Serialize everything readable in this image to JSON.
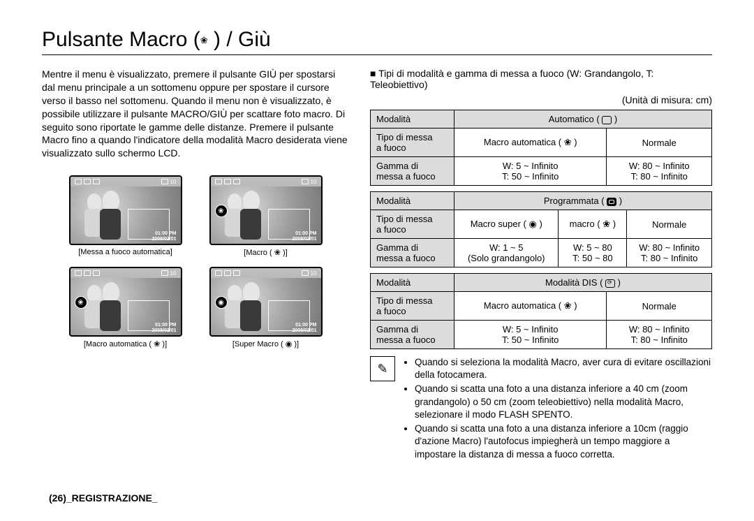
{
  "title_prefix": "Pulsante Macro (",
  "title_suffix": " ) / Giù",
  "intro": "Mentre il menu è visualizzato, premere il pulsante GIÙ per spostarsi dal menu principale a un sottomenu oppure per spostare il cursore verso il basso nel sottomenu. Quando il menu non è visualizzato, è possibile utilizzare il pulsante MACRO/GIÙ per scattare foto macro. Di seguito sono riportate le gamme delle distanze. Premere il pulsante Macro fino a quando l'indicatore della modalità Macro desiderata viene visualizzato sullo schermo LCD.",
  "thumbs": [
    {
      "caption_pre": "[Messa a fuoco automatica]",
      "time": "01:00 PM",
      "date": "2008/02/01",
      "res": "10",
      "has_badge": false
    },
    {
      "caption_pre": "[Macro ( ",
      "caption_post": " )]",
      "time": "01:00 PM",
      "date": "2008/02/01",
      "res": "10",
      "has_badge": true,
      "badge": "❀"
    },
    {
      "caption_pre": "[Macro automatica ( ",
      "caption_post": " )]",
      "time": "01:00 PM",
      "date": "2008/02/01",
      "res": "10",
      "has_badge": true,
      "badge": "❀"
    },
    {
      "caption_pre": "[Super Macro ( ",
      "caption_post": " )]",
      "time": "01:00 PM",
      "date": "2008/02/01",
      "res": "10",
      "has_badge": true,
      "badge": "◉"
    }
  ],
  "right_header": "■ Tipi di modalità e gamma di messa a fuoco (W: Grandangolo, T: Teleobiettivo)",
  "unit_note": "(Unità di misura: cm)",
  "labels": {
    "modalita": "Modalità",
    "tipo": "Tipo di messa\na fuoco",
    "gamma": "Gamma di\nmessa a fuoco"
  },
  "tables": [
    {
      "mode_label": "Automatico ( ",
      "mode_suffix": " )",
      "focus_cols": [
        "Macro automatica ( ❀ )",
        "Normale"
      ],
      "range_cols": [
        [
          "W: 5 ~ Infinito",
          "T: 50 ~ Infinito"
        ],
        [
          "W: 80 ~ Infinito",
          "T: 80 ~ Infinito"
        ]
      ],
      "col_count": 2
    },
    {
      "mode_label": "Programmata ( ",
      "mode_suffix": " )",
      "focus_cols": [
        "Macro super ( ◉ )",
        "macro ( ❀ )",
        "Normale"
      ],
      "range_cols": [
        [
          "W: 1 ~ 5",
          "(Solo grandangolo)"
        ],
        [
          "W: 5 ~ 80",
          "T: 50 ~ 80"
        ],
        [
          "W: 80 ~ Infinito",
          "T: 80 ~ Infinito"
        ]
      ],
      "col_count": 3
    },
    {
      "mode_label": "Modalità DIS ( ",
      "mode_suffix": " )",
      "focus_cols": [
        "Macro automatica ( ❀ )",
        "Normale"
      ],
      "range_cols": [
        [
          "W: 5 ~ Infinito",
          "T: 50 ~ Infinito"
        ],
        [
          "W: 80 ~ Infinito",
          "T: 80 ~ Infinito"
        ]
      ],
      "col_count": 2
    }
  ],
  "notes": [
    "Quando si seleziona la modalità Macro, aver cura di evitare oscillazioni della fotocamera.",
    "Quando si scatta una foto a una distanza inferiore a 40 cm (zoom grandangolo) o 50 cm (zoom teleobiettivo) nella modalità Macro, selezionare il modo FLASH SPENTO.",
    "Quando si scatta una foto a una distanza inferiore a 10cm (raggio d'azione Macro) l'autofocus impiegherà un tempo maggiore a impostare la distanza di messa a fuoco corretta."
  ],
  "footer": "(26)_REGISTRAZIONE_",
  "colors": {
    "table_header_bg": "#dcdcdc",
    "border": "#000000",
    "text": "#000000",
    "background": "#ffffff"
  }
}
